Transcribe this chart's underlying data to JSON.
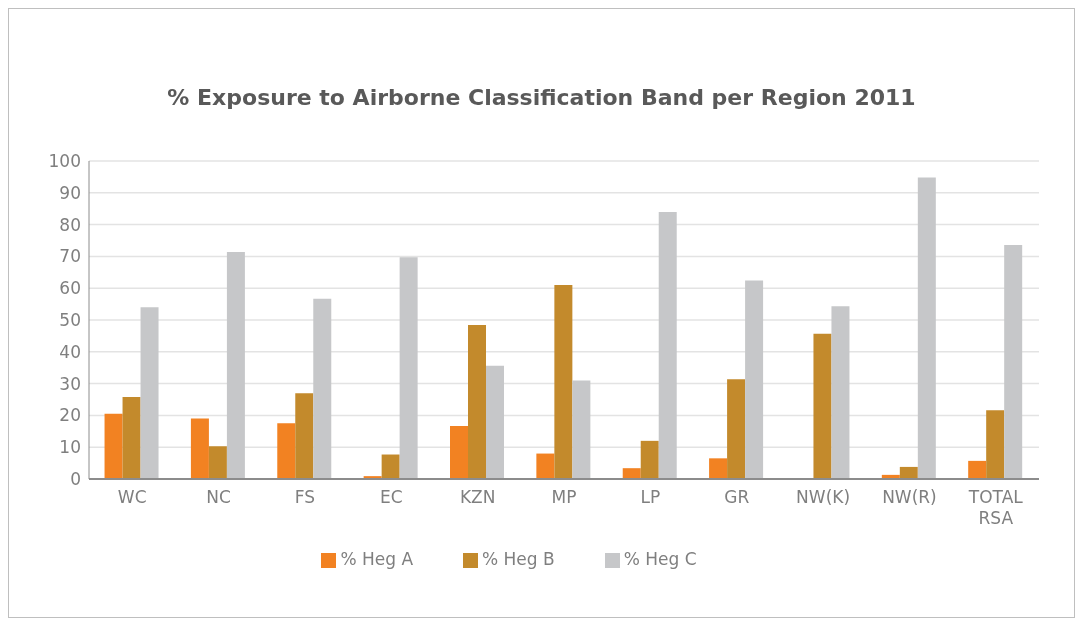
{
  "chart_data": {
    "type": "bar",
    "title": "% Exposure to Airborne Classification Band per Region 2011",
    "categories": [
      "WC",
      "NC",
      "FS",
      "EC",
      "KZN",
      "MP",
      "LP",
      "GR",
      "NW(K)",
      "NW(R)",
      "TOTAL RSA"
    ],
    "series": [
      {
        "name": "% Heg A",
        "color": "#f28222",
        "values": [
          20.5,
          19,
          17.5,
          0.9,
          16.7,
          8,
          3.4,
          6.5,
          0,
          1.3,
          5.7
        ]
      },
      {
        "name": "% Heg B",
        "color": "#c38a2c",
        "values": [
          25.8,
          10.3,
          27,
          7.7,
          48.4,
          61,
          12,
          31.4,
          45.7,
          3.8,
          21.6
        ]
      },
      {
        "name": "% Heg C",
        "color": "#c6c7c9",
        "values": [
          54,
          71.4,
          56.7,
          69.7,
          35.6,
          31,
          84,
          62.4,
          54.3,
          94.8,
          73.6
        ]
      }
    ],
    "ylim": [
      0,
      100
    ],
    "yticks": [
      0,
      10,
      20,
      30,
      40,
      50,
      60,
      70,
      80,
      90,
      100
    ],
    "grid": "y",
    "legend": "bottom"
  }
}
